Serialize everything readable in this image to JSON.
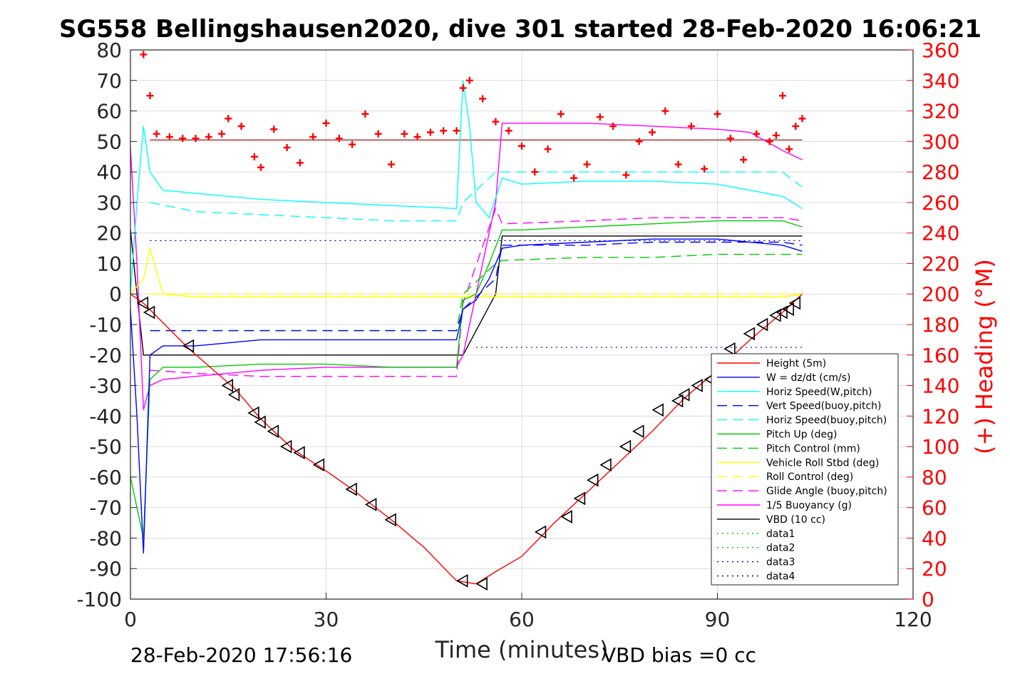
{
  "chart_data": {
    "type": "line",
    "title": "SG558 Bellingshausen2020, dive 301 started 28-Feb-2020 16:06:21",
    "xlabel": "Time (minutes)",
    "ylabel": "",
    "y2label": "(+) Heading (°M)",
    "footer_left": "28-Feb-2020 17:56:16",
    "footer_right": "VBD bias =0 cc",
    "xlim": [
      0,
      120
    ],
    "ylim": [
      -100,
      80
    ],
    "y2lim": [
      0,
      360
    ],
    "xticks": [
      0,
      30,
      60,
      90,
      120
    ],
    "yticks": [
      80,
      70,
      60,
      50,
      40,
      30,
      20,
      10,
      0,
      -10,
      -20,
      -30,
      -40,
      -50,
      -60,
      -70,
      -80,
      -90,
      -100
    ],
    "y2ticks": [
      360,
      340,
      320,
      300,
      280,
      260,
      240,
      220,
      200,
      180,
      160,
      140,
      120,
      100,
      80,
      60,
      40,
      20,
      0
    ],
    "grid": true,
    "legend_position": "bottom-right",
    "colors": {
      "heading": "#ff0000",
      "y2axis": "#ff0000"
    },
    "series": [
      {
        "name": "Height (5m)",
        "color": "#ff0000",
        "style": "solid",
        "x": [
          0,
          2,
          9,
          16,
          20,
          25,
          30,
          34,
          40,
          45,
          50,
          53,
          56,
          60,
          65,
          70,
          75,
          80,
          85,
          90,
          95,
          100,
          103
        ],
        "y": [
          0,
          -3,
          -18,
          -31,
          -41,
          -51,
          -58,
          -64,
          -74,
          -83,
          -94,
          -95,
          -91,
          -86,
          -75,
          -65,
          -55,
          -45,
          -34,
          -25,
          -15,
          -6,
          0
        ]
      },
      {
        "name": "W = dz/dt (cm/s)",
        "color": "#0000ff",
        "style": "solid",
        "x": [
          0,
          1,
          2,
          3,
          5,
          10,
          20,
          30,
          40,
          50,
          51,
          53,
          55,
          57,
          60,
          70,
          80,
          90,
          100,
          103
        ],
        "y": [
          -5,
          -40,
          -85,
          -20,
          -17,
          -17,
          -15,
          -15,
          -15,
          -15,
          -5,
          -2,
          5,
          15,
          16,
          17,
          18,
          18,
          16,
          14
        ]
      },
      {
        "name": "Horiz Speed(W,pitch)",
        "color": "#00ffff",
        "style": "solid",
        "x": [
          0,
          1,
          2,
          3,
          5,
          10,
          20,
          30,
          40,
          50,
          51,
          52,
          53,
          55,
          57,
          60,
          70,
          80,
          90,
          100,
          103
        ],
        "y": [
          0,
          30,
          55,
          40,
          34,
          33,
          31,
          30,
          29,
          28,
          70,
          55,
          30,
          25,
          38,
          36,
          37,
          37,
          36,
          32,
          28
        ]
      },
      {
        "name": "Vert Speed(buoy,pitch)",
        "color": "#0000ff",
        "style": "dashed",
        "x": [
          3,
          10,
          20,
          30,
          40,
          50,
          51,
          56,
          57,
          70,
          80,
          90,
          100,
          103
        ],
        "y": [
          -12,
          -12,
          -12,
          -12,
          -12,
          -12,
          -5,
          5,
          16,
          16,
          17,
          17,
          17,
          16
        ]
      },
      {
        "name": "Horiz Speed(buoy,pitch)",
        "color": "#00ffff",
        "style": "dashed",
        "x": [
          3,
          10,
          20,
          30,
          40,
          50,
          51,
          56,
          57,
          70,
          80,
          90,
          100,
          103
        ],
        "y": [
          30,
          27,
          26,
          25,
          24,
          24,
          30,
          40,
          40,
          40,
          40,
          40,
          40,
          35
        ]
      },
      {
        "name": "Pitch Up (deg)",
        "color": "#00cc00",
        "style": "solid",
        "x": [
          0,
          1,
          2,
          3,
          5,
          10,
          20,
          30,
          40,
          50,
          51,
          53,
          55,
          57,
          60,
          70,
          80,
          90,
          100,
          103
        ],
        "y": [
          -60,
          -70,
          -80,
          -28,
          -24,
          -24,
          -23,
          -23,
          -24,
          -24,
          -2,
          0,
          10,
          21,
          21,
          22,
          23,
          24,
          24,
          22
        ]
      },
      {
        "name": "Pitch Control (mm)",
        "color": "#00cc00",
        "style": "dashed",
        "x": [
          3,
          10,
          20,
          30,
          40,
          50,
          51,
          56,
          57,
          70,
          80,
          90,
          100,
          103
        ],
        "y": [
          -12,
          -12,
          -12,
          -12,
          -12,
          -12,
          0,
          10,
          11,
          12,
          12,
          13,
          13,
          13
        ]
      },
      {
        "name": "Vehicle Roll Stbd (deg)",
        "color": "#ffff00",
        "style": "solid",
        "x": [
          0,
          2,
          3,
          5,
          10,
          20,
          30,
          40,
          50,
          60,
          70,
          80,
          90,
          100,
          103
        ],
        "y": [
          0,
          5,
          15,
          0,
          -1,
          -1,
          -1,
          -1,
          -1,
          -1,
          -1,
          -1,
          -1,
          -1,
          0
        ]
      },
      {
        "name": "Roll Control (deg)",
        "color": "#ffff00",
        "style": "dashed",
        "x": [
          3,
          10,
          20,
          30,
          40,
          50,
          60,
          70,
          80,
          90,
          100,
          103
        ],
        "y": [
          0,
          0,
          0,
          0,
          0,
          0,
          0,
          0,
          0,
          0,
          0,
          0
        ]
      },
      {
        "name": "Glide Angle (buoy,pitch)",
        "color": "#ff00ff",
        "style": "dashed",
        "x": [
          3,
          10,
          20,
          30,
          40,
          50,
          51,
          56,
          57,
          70,
          80,
          90,
          100,
          103
        ],
        "y": [
          -25,
          -26,
          -27,
          -27,
          -27,
          -27,
          -3,
          28,
          23,
          24,
          25,
          25,
          25,
          24
        ]
      },
      {
        "name": "1/5 Buoyancy (g)",
        "color": "#ff00ff",
        "style": "solid",
        "x": [
          0,
          1,
          2,
          3,
          5,
          10,
          20,
          30,
          40,
          50,
          51,
          56,
          57,
          70,
          80,
          90,
          95,
          100,
          103
        ],
        "y": [
          48,
          10,
          -38,
          -30,
          -28,
          -27,
          -25,
          -24,
          -24,
          -24,
          -20,
          30,
          56,
          56,
          55,
          54,
          53,
          47,
          44
        ]
      },
      {
        "name": "VBD (10 cc)",
        "color": "#000000",
        "style": "solid",
        "x": [
          0,
          1,
          2,
          3,
          10,
          20,
          30,
          40,
          50,
          51,
          56,
          57,
          60,
          70,
          80,
          90,
          100,
          103
        ],
        "y": [
          21,
          0,
          -20,
          -20,
          -20,
          -20,
          -20,
          -20,
          -20,
          -20,
          0,
          19,
          19,
          19,
          19,
          19,
          19,
          19
        ]
      },
      {
        "name": "data1",
        "color": "#00cc00",
        "style": "dotted",
        "x": [],
        "y": []
      },
      {
        "name": "data2",
        "color": "#00cc00",
        "style": "dotted",
        "x": [],
        "y": []
      },
      {
        "name": "data3",
        "color": "#0000aa",
        "style": "dotted",
        "x": [],
        "y": []
      },
      {
        "name": "data4",
        "color": "#0000aa",
        "style": "dotted",
        "x": [],
        "y": []
      }
    ],
    "reference_lines": [
      {
        "color": "#0000aa",
        "style": "dotted",
        "x": [
          3,
          103
        ],
        "y": [
          17.5,
          17.5
        ]
      },
      {
        "color": "#0000aa",
        "style": "dotted",
        "x": [
          53,
          103
        ],
        "y": [
          -17.5,
          -17.5
        ]
      },
      {
        "color": "#8b0000",
        "style": "solid",
        "x": [
          3,
          103
        ],
        "y": [
          50.5,
          50.5
        ]
      }
    ],
    "heading_markers": {
      "color": "#ff0000",
      "marker": "+",
      "axis": "right",
      "x": [
        2,
        3,
        4,
        6,
        8,
        10,
        12,
        14,
        15,
        17,
        19,
        20,
        22,
        24,
        26,
        28,
        30,
        32,
        34,
        36,
        38,
        40,
        42,
        44,
        46,
        48,
        50,
        51,
        52,
        54,
        56,
        58,
        60,
        62,
        64,
        66,
        68,
        70,
        72,
        74,
        76,
        78,
        80,
        82,
        84,
        86,
        88,
        90,
        92,
        94,
        96,
        98,
        99,
        100,
        101,
        102,
        103
      ],
      "y": [
        357,
        330,
        305,
        303,
        302,
        302,
        303,
        305,
        315,
        310,
        290,
        283,
        308,
        296,
        286,
        303,
        312,
        302,
        298,
        318,
        305,
        285,
        305,
        303,
        306,
        307,
        307,
        335,
        340,
        328,
        313,
        307,
        297,
        280,
        295,
        318,
        276,
        285,
        316,
        310,
        278,
        300,
        306,
        320,
        285,
        310,
        282,
        318,
        302,
        288,
        305,
        300,
        304,
        330,
        295,
        310,
        315
      ]
    },
    "dive_markers": {
      "color": "#000000",
      "marker": "triangle-left",
      "x": [
        2,
        3,
        9,
        15,
        16,
        19,
        20,
        22,
        24,
        26,
        29,
        34,
        37,
        40,
        51,
        54,
        63,
        67,
        69,
        71,
        73,
        76,
        78,
        81,
        84,
        85,
        87,
        89,
        92,
        95,
        97,
        99,
        100,
        101,
        102
      ],
      "y": [
        -3,
        -6,
        -17,
        -30,
        -33,
        -39,
        -42,
        -45,
        -50,
        -52,
        -56,
        -64,
        -69,
        -74,
        -94,
        -95,
        -78,
        -73,
        -67,
        -61,
        -56,
        -50,
        -45,
        -38,
        -35,
        -33,
        -30,
        -28,
        -18,
        -13,
        -10,
        -7,
        -6,
        -5,
        -3
      ]
    }
  }
}
